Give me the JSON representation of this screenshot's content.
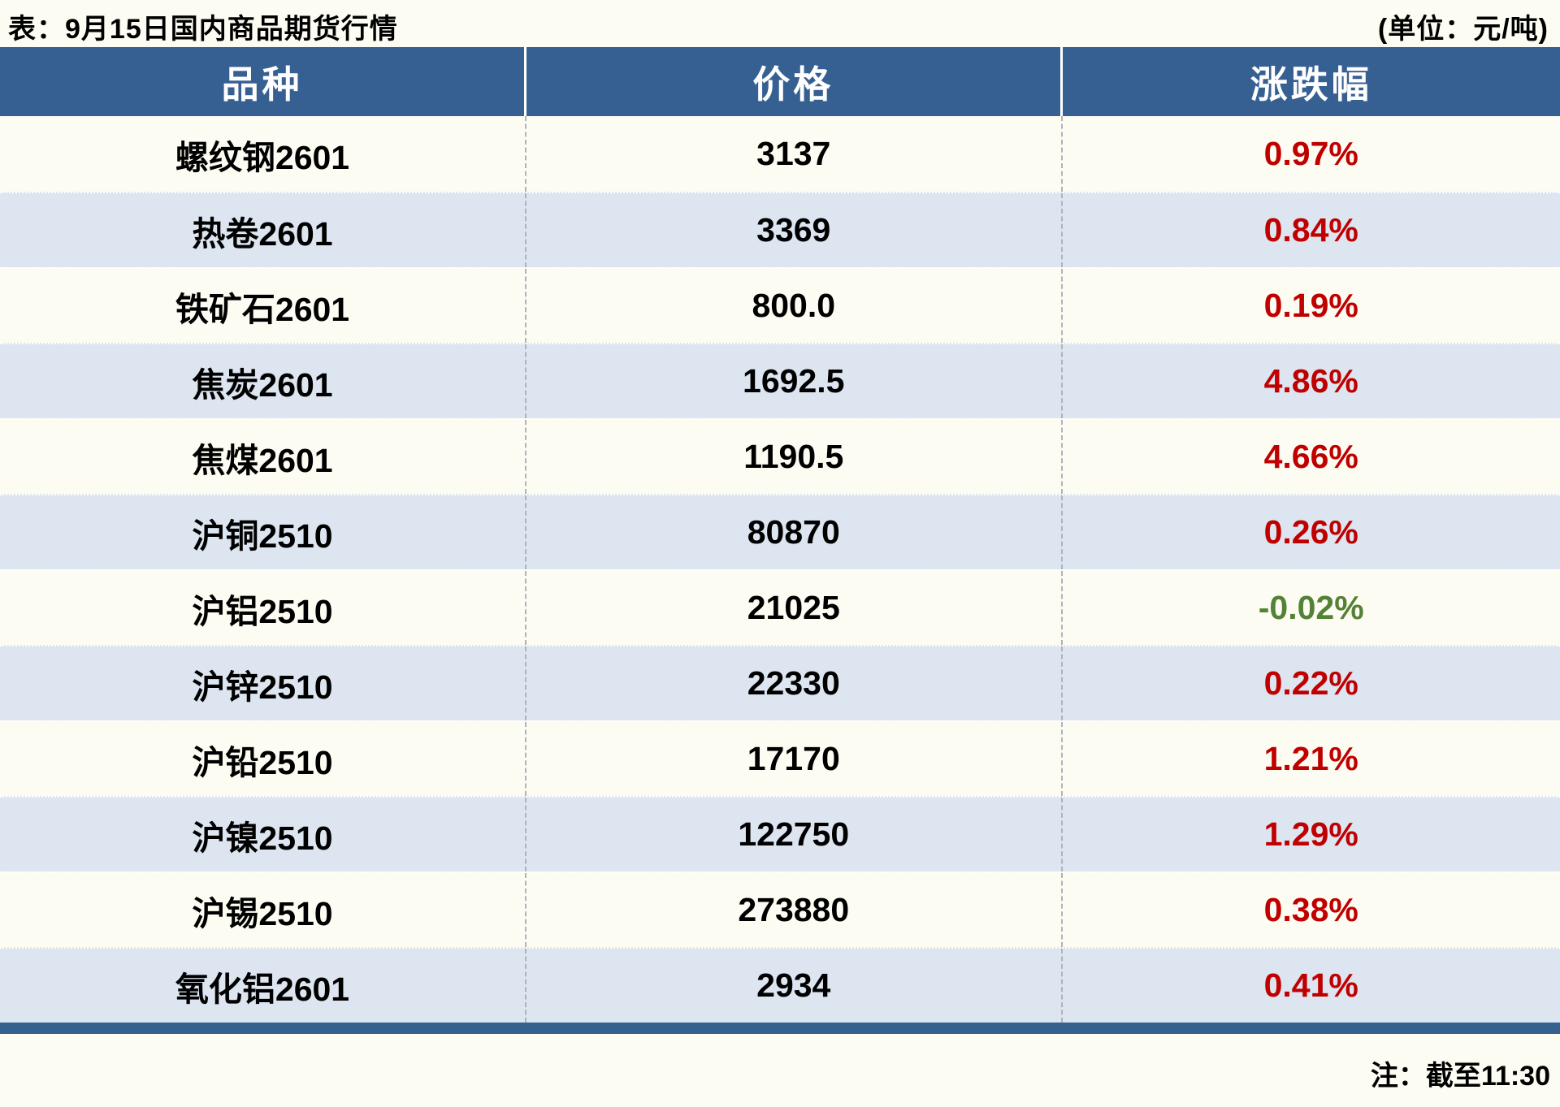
{
  "title": "表：9月15日国内商品期货行情",
  "unit_label": "(单位：元/吨)",
  "footer_note": "注：截至11:30",
  "colors": {
    "header_bg": "#376092",
    "row_alt_bg": "#DCE5F0",
    "up_red": "#C00000",
    "down_green": "#538135",
    "page_bg": "#FDFCF2",
    "divider": "#AEB4BC",
    "bottom_bar": "#35618F"
  },
  "chart_data": {
    "type": "table",
    "title": "表：9月15日国内商品期货行情",
    "unit": "元/吨",
    "as_of": "注：截至11:30",
    "columns": [
      "品种",
      "价格",
      "涨跌幅"
    ],
    "rows": [
      {
        "name": "螺纹钢2601",
        "price": "3137",
        "change": "0.97%",
        "direction": "up"
      },
      {
        "name": "热卷2601",
        "price": "3369",
        "change": "0.84%",
        "direction": "up"
      },
      {
        "name": "铁矿石2601",
        "price": "800.0",
        "change": "0.19%",
        "direction": "up"
      },
      {
        "name": "焦炭2601",
        "price": "1692.5",
        "change": "4.86%",
        "direction": "up"
      },
      {
        "name": "焦煤2601",
        "price": "1190.5",
        "change": "4.66%",
        "direction": "up"
      },
      {
        "name": "沪铜2510",
        "price": "80870",
        "change": "0.26%",
        "direction": "up"
      },
      {
        "name": "沪铝2510",
        "price": "21025",
        "change": "-0.02%",
        "direction": "down"
      },
      {
        "name": "沪锌2510",
        "price": "22330",
        "change": "0.22%",
        "direction": "up"
      },
      {
        "name": "沪铅2510",
        "price": "17170",
        "change": "1.21%",
        "direction": "up"
      },
      {
        "name": "沪镍2510",
        "price": "122750",
        "change": "1.29%",
        "direction": "up"
      },
      {
        "name": "沪锡2510",
        "price": "273880",
        "change": "0.38%",
        "direction": "up"
      },
      {
        "name": "氧化铝2601",
        "price": "2934",
        "change": "0.41%",
        "direction": "up"
      }
    ]
  }
}
